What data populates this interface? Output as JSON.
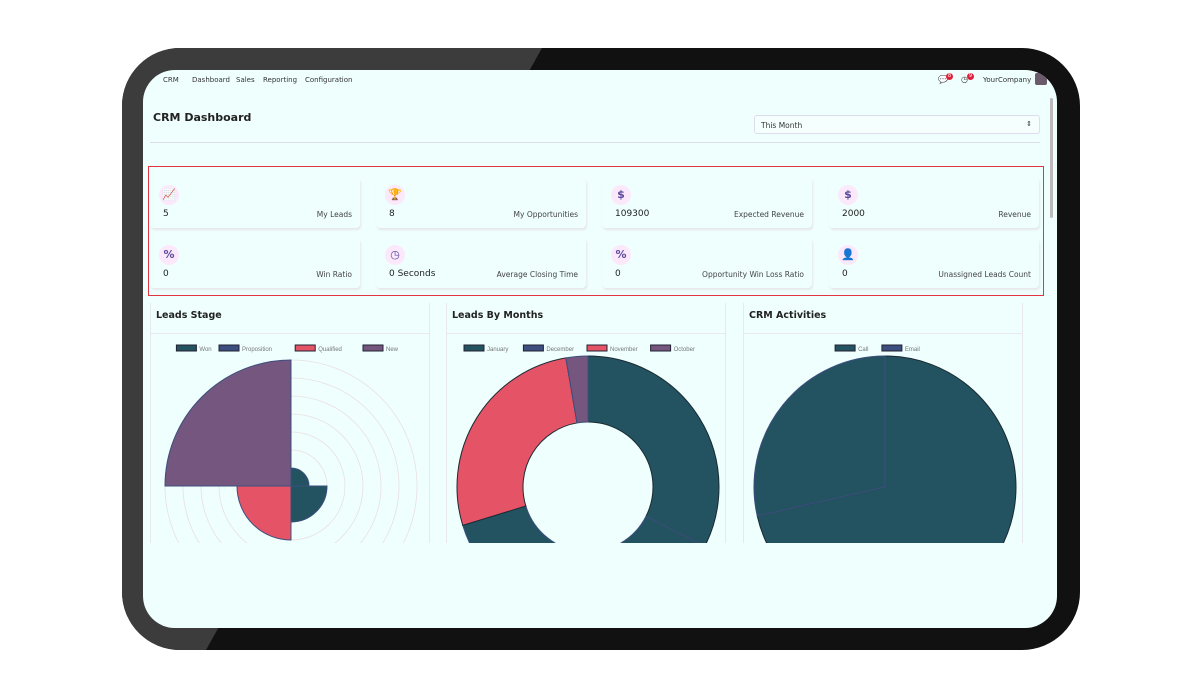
{
  "nav": {
    "app": "CRM",
    "items": [
      "Dashboard",
      "Sales",
      "Reporting",
      "Configuration"
    ],
    "chat_badge": "8",
    "activity_badge": "9",
    "company": "YourCompany"
  },
  "header": {
    "title": "CRM Dashboard",
    "period": "This Month"
  },
  "kpis": [
    {
      "icon": "chart-line-icon",
      "glyph": "📈",
      "value": "5",
      "label": "My Leads"
    },
    {
      "icon": "trophy-icon",
      "glyph": "🏆",
      "value": "8",
      "label": "My Opportunities"
    },
    {
      "icon": "dollar-icon",
      "glyph": "$",
      "value": "109300",
      "label": "Expected Revenue"
    },
    {
      "icon": "dollar-icon",
      "glyph": "$",
      "value": "2000",
      "label": "Revenue"
    },
    {
      "icon": "percent-icon",
      "glyph": "%",
      "value": "0",
      "label": "Win Ratio"
    },
    {
      "icon": "clock-icon",
      "glyph": "◷",
      "value": "0 Seconds",
      "label": "Average Closing Time"
    },
    {
      "icon": "percent-icon",
      "glyph": "%",
      "value": "0",
      "label": "Opportunity Win Loss Ratio"
    },
    {
      "icon": "user-x-icon",
      "glyph": "👤",
      "value": "0",
      "label": "Unassigned Leads Count"
    }
  ],
  "colors": {
    "teal": "#235260",
    "blue": "#3c4f7e",
    "red": "#e45466",
    "purple": "#74567f",
    "highlight": "#e2353f"
  },
  "chart_data": [
    {
      "type": "polarArea",
      "title": "Leads Stage",
      "categories": [
        "Won",
        "Proposition",
        "Qualified",
        "New"
      ],
      "values": [
        1,
        2,
        3,
        7
      ],
      "colors": [
        "#235260",
        "#235260",
        "#e45466",
        "#74567f"
      ],
      "legend_colors": [
        "#235260",
        "#3c4f7e",
        "#e45466",
        "#74567f"
      ],
      "rmax": 7,
      "legend": "top"
    },
    {
      "type": "doughnut",
      "title": "Leads By Months",
      "categories": [
        "January",
        "December",
        "November",
        "October"
      ],
      "values": [
        12,
        14,
        10,
        1
      ],
      "colors": [
        "#235260",
        "#235260",
        "#e45466",
        "#74567f"
      ],
      "legend_colors": [
        "#235260",
        "#3c4f7e",
        "#e45466",
        "#74567f"
      ],
      "legend": "top"
    },
    {
      "type": "pie",
      "title": "CRM Activities",
      "categories": [
        "Call",
        "Email"
      ],
      "values": [
        5,
        2
      ],
      "colors": [
        "#235260",
        "#235260"
      ],
      "legend_colors": [
        "#235260",
        "#3c4f7e"
      ],
      "legend": "top"
    }
  ]
}
